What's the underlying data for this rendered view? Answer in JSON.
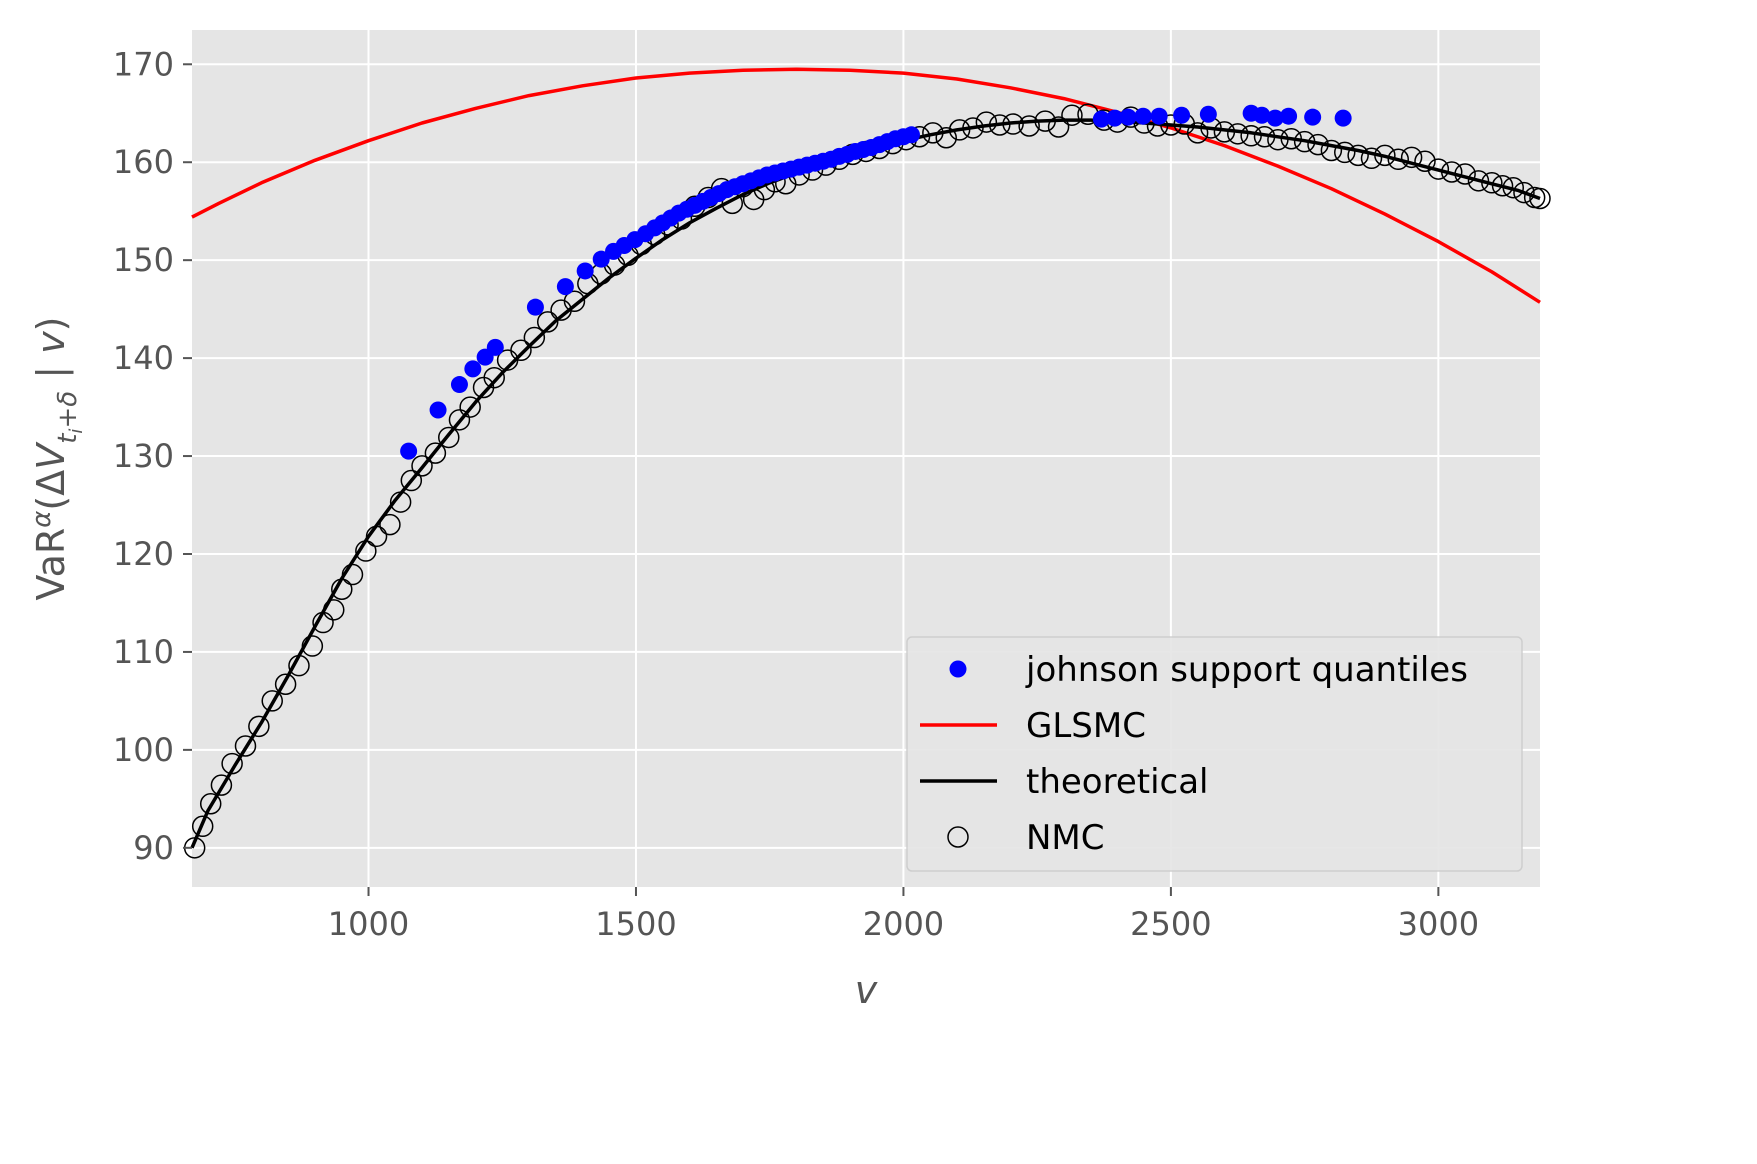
{
  "chart_data": {
    "type": "scatter",
    "xlabel": "v",
    "ylabel": "VaRα(ΔV_{t_i+δ} | v)",
    "xlim": [
      670,
      3190
    ],
    "ylim": [
      86,
      173.5
    ],
    "xticks": [
      1000,
      1500,
      2000,
      2500,
      3000
    ],
    "yticks": [
      90,
      100,
      110,
      120,
      130,
      140,
      150,
      160,
      170
    ],
    "grid": true,
    "legend_position": "lower right",
    "series": [
      {
        "name": "johnson support quantiles",
        "kind": "scatter-filled",
        "color": "#0000ff",
        "points": [
          [
            1075,
            130.5
          ],
          [
            1130,
            134.7
          ],
          [
            1170,
            137.3
          ],
          [
            1195,
            138.9
          ],
          [
            1218,
            140.1
          ],
          [
            1237,
            141.1
          ],
          [
            1312,
            145.2
          ],
          [
            1368,
            147.3
          ],
          [
            1405,
            148.9
          ],
          [
            1435,
            150.1
          ],
          [
            1458,
            150.9
          ],
          [
            1478,
            151.5
          ],
          [
            1498,
            152.1
          ],
          [
            1518,
            152.7
          ],
          [
            1535,
            153.3
          ],
          [
            1550,
            153.8
          ],
          [
            1565,
            154.3
          ],
          [
            1580,
            154.8
          ],
          [
            1595,
            155.2
          ],
          [
            1610,
            155.6
          ],
          [
            1625,
            156.0
          ],
          [
            1640,
            156.4
          ],
          [
            1655,
            156.8
          ],
          [
            1670,
            157.2
          ],
          [
            1685,
            157.5
          ],
          [
            1700,
            157.8
          ],
          [
            1715,
            158.1
          ],
          [
            1730,
            158.4
          ],
          [
            1745,
            158.7
          ],
          [
            1760,
            158.9
          ],
          [
            1775,
            159.1
          ],
          [
            1790,
            159.3
          ],
          [
            1805,
            159.5
          ],
          [
            1820,
            159.7
          ],
          [
            1835,
            159.9
          ],
          [
            1850,
            160.1
          ],
          [
            1865,
            160.3
          ],
          [
            1880,
            160.6
          ],
          [
            1895,
            160.8
          ],
          [
            1910,
            161.1
          ],
          [
            1925,
            161.3
          ],
          [
            1940,
            161.5
          ],
          [
            1955,
            161.8
          ],
          [
            1970,
            162.1
          ],
          [
            1985,
            162.4
          ],
          [
            2000,
            162.6
          ],
          [
            2015,
            162.8
          ],
          [
            2370,
            164.4
          ],
          [
            2395,
            164.5
          ],
          [
            2420,
            164.6
          ],
          [
            2448,
            164.7
          ],
          [
            2478,
            164.7
          ],
          [
            2520,
            164.8
          ],
          [
            2570,
            164.9
          ],
          [
            2650,
            165.0
          ],
          [
            2670,
            164.8
          ],
          [
            2695,
            164.5
          ],
          [
            2720,
            164.7
          ],
          [
            2765,
            164.6
          ],
          [
            2822,
            164.5
          ]
        ]
      },
      {
        "name": "GLSMC",
        "kind": "line",
        "color": "#ff0000",
        "x": [
          670,
          720,
          800,
          900,
          1000,
          1100,
          1200,
          1300,
          1400,
          1500,
          1600,
          1700,
          1800,
          1900,
          2000,
          2100,
          2200,
          2300,
          2400,
          2500,
          2600,
          2700,
          2800,
          2900,
          3000,
          3100,
          3190
        ],
        "y": [
          154.4,
          155.8,
          157.9,
          160.2,
          162.2,
          164.0,
          165.5,
          166.8,
          167.8,
          168.6,
          169.1,
          169.4,
          169.5,
          169.4,
          169.1,
          168.5,
          167.6,
          166.5,
          165.1,
          163.5,
          161.7,
          159.6,
          157.3,
          154.7,
          151.9,
          148.8,
          145.7
        ]
      },
      {
        "name": "theoretical",
        "kind": "line",
        "color": "#000000",
        "x": [
          670,
          700,
          750,
          800,
          850,
          900,
          950,
          1000,
          1050,
          1100,
          1150,
          1200,
          1250,
          1300,
          1350,
          1400,
          1450,
          1500,
          1550,
          1600,
          1650,
          1700,
          1750,
          1800,
          1850,
          1900,
          1950,
          2000,
          2050,
          2100,
          2150,
          2200,
          2250,
          2300,
          2350,
          2400,
          2450,
          2500,
          2550,
          2600,
          2650,
          2700,
          2750,
          2800,
          2850,
          2900,
          2950,
          3000,
          3050,
          3100,
          3150,
          3190
        ],
        "y": [
          90.0,
          93.8,
          98.4,
          102.8,
          107.6,
          112.6,
          117.5,
          121.8,
          125.5,
          128.8,
          132.2,
          135.5,
          138.5,
          141.2,
          143.8,
          146.0,
          148.2,
          150.2,
          152.1,
          153.8,
          155.3,
          156.7,
          157.9,
          158.9,
          159.8,
          160.7,
          161.5,
          162.2,
          162.8,
          163.3,
          163.7,
          164.0,
          164.2,
          164.3,
          164.3,
          164.2,
          164.0,
          163.8,
          163.6,
          163.3,
          163.0,
          162.6,
          162.2,
          161.7,
          161.2,
          160.6,
          159.9,
          159.2,
          158.5,
          157.8,
          157.1,
          156.3
        ]
      },
      {
        "name": "NMC",
        "kind": "scatter-open",
        "color": "#000000",
        "points": [
          [
            675,
            90.0
          ],
          [
            690,
            92.2
          ],
          [
            705,
            94.5
          ],
          [
            725,
            96.4
          ],
          [
            745,
            98.6
          ],
          [
            770,
            100.4
          ],
          [
            795,
            102.4
          ],
          [
            820,
            105.0
          ],
          [
            845,
            106.7
          ],
          [
            870,
            108.6
          ],
          [
            895,
            110.6
          ],
          [
            915,
            113.0
          ],
          [
            935,
            114.3
          ],
          [
            950,
            116.4
          ],
          [
            970,
            117.9
          ],
          [
            995,
            120.3
          ],
          [
            1015,
            121.8
          ],
          [
            1040,
            123.0
          ],
          [
            1060,
            125.3
          ],
          [
            1080,
            127.5
          ],
          [
            1100,
            129.0
          ],
          [
            1125,
            130.3
          ],
          [
            1150,
            131.9
          ],
          [
            1170,
            133.7
          ],
          [
            1190,
            135.0
          ],
          [
            1215,
            137.0
          ],
          [
            1235,
            138.0
          ],
          [
            1260,
            139.8
          ],
          [
            1285,
            140.8
          ],
          [
            1310,
            142.1
          ],
          [
            1335,
            143.7
          ],
          [
            1360,
            144.9
          ],
          [
            1385,
            145.8
          ],
          [
            1410,
            147.6
          ],
          [
            1435,
            148.6
          ],
          [
            1460,
            149.5
          ],
          [
            1485,
            150.5
          ],
          [
            1510,
            151.6
          ],
          [
            1535,
            152.6
          ],
          [
            1560,
            153.6
          ],
          [
            1585,
            154.2
          ],
          [
            1610,
            155.5
          ],
          [
            1635,
            156.4
          ],
          [
            1660,
            157.3
          ],
          [
            1680,
            155.8
          ],
          [
            1700,
            157.5
          ],
          [
            1720,
            156.2
          ],
          [
            1740,
            157.2
          ],
          [
            1760,
            158.0
          ],
          [
            1780,
            157.8
          ],
          [
            1805,
            158.7
          ],
          [
            1830,
            159.2
          ],
          [
            1855,
            159.7
          ],
          [
            1880,
            160.3
          ],
          [
            1905,
            160.8
          ],
          [
            1930,
            161.1
          ],
          [
            1955,
            161.4
          ],
          [
            1980,
            161.9
          ],
          [
            2005,
            162.3
          ],
          [
            2030,
            162.6
          ],
          [
            2055,
            163.0
          ],
          [
            2080,
            162.5
          ],
          [
            2105,
            163.3
          ],
          [
            2130,
            163.5
          ],
          [
            2155,
            164.1
          ],
          [
            2180,
            163.8
          ],
          [
            2205,
            163.9
          ],
          [
            2235,
            163.7
          ],
          [
            2265,
            164.2
          ],
          [
            2290,
            163.6
          ],
          [
            2315,
            164.8
          ],
          [
            2345,
            164.9
          ],
          [
            2375,
            164.3
          ],
          [
            2400,
            164.1
          ],
          [
            2425,
            164.6
          ],
          [
            2450,
            164.0
          ],
          [
            2475,
            163.7
          ],
          [
            2500,
            163.8
          ],
          [
            2525,
            163.9
          ],
          [
            2550,
            163.0
          ],
          [
            2575,
            163.5
          ],
          [
            2600,
            163.1
          ],
          [
            2625,
            162.9
          ],
          [
            2650,
            162.7
          ],
          [
            2675,
            162.6
          ],
          [
            2700,
            162.3
          ],
          [
            2725,
            162.4
          ],
          [
            2750,
            162.1
          ],
          [
            2775,
            161.8
          ],
          [
            2800,
            161.2
          ],
          [
            2825,
            161.0
          ],
          [
            2850,
            160.7
          ],
          [
            2875,
            160.4
          ],
          [
            2900,
            160.7
          ],
          [
            2925,
            160.3
          ],
          [
            2950,
            160.5
          ],
          [
            2975,
            160.1
          ],
          [
            3000,
            159.3
          ],
          [
            3025,
            159.0
          ],
          [
            3050,
            158.8
          ],
          [
            3075,
            158.1
          ],
          [
            3100,
            157.9
          ],
          [
            3120,
            157.6
          ],
          [
            3140,
            157.4
          ],
          [
            3160,
            156.9
          ],
          [
            3180,
            156.4
          ],
          [
            3190,
            156.3
          ]
        ]
      }
    ]
  }
}
